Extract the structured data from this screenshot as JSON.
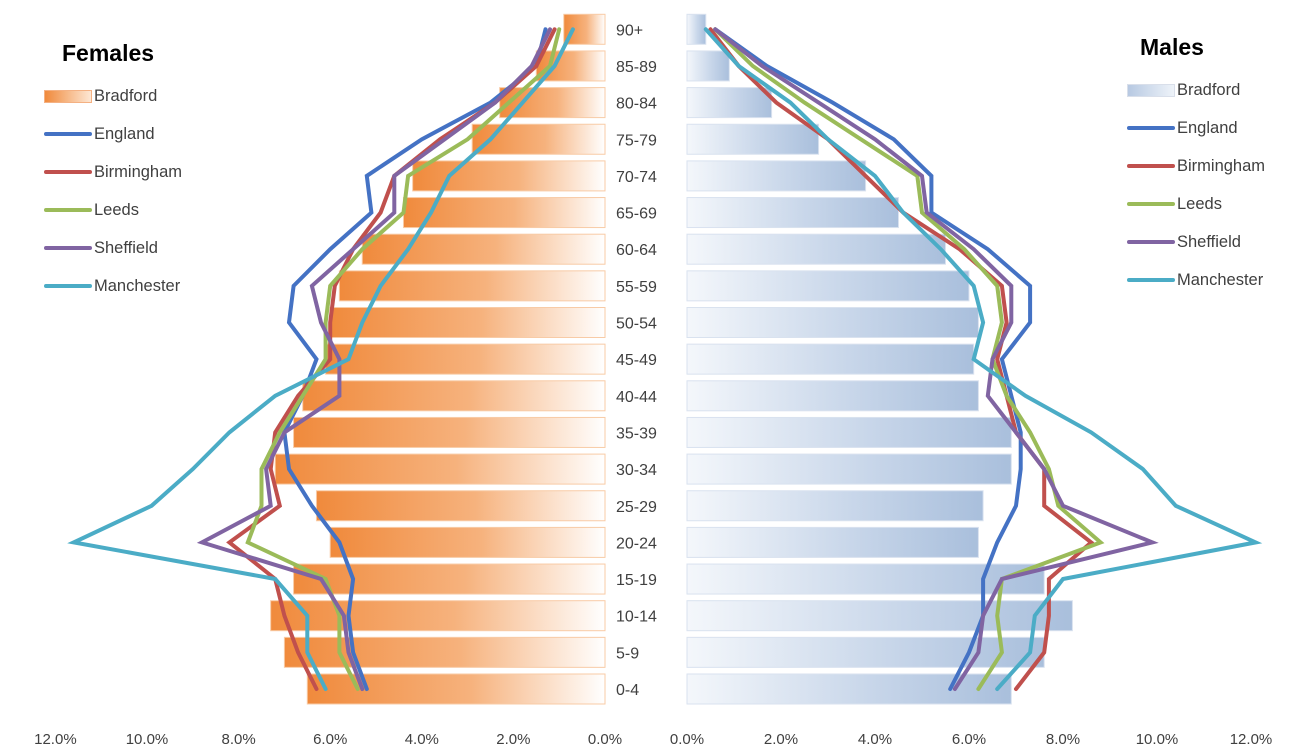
{
  "chart_data": [
    {
      "type": "bar",
      "panel": "female",
      "title": "Females",
      "categories": [
        "0-4",
        "5-9",
        "10-14",
        "15-19",
        "20-24",
        "25-29",
        "30-34",
        "35-39",
        "40-44",
        "45-49",
        "50-54",
        "55-59",
        "60-64",
        "65-69",
        "70-74",
        "75-79",
        "80-84",
        "85-89",
        "90+"
      ],
      "xlim": [
        0,
        12
      ],
      "x_ticks": [
        "0.0%",
        "2.0%",
        "4.0%",
        "6.0%",
        "8.0%",
        "10.0%",
        "12.0%"
      ],
      "x_direction": "reversed",
      "bars": {
        "name": "Bradford",
        "values": [
          6.5,
          7.0,
          7.3,
          6.8,
          6.0,
          6.3,
          7.2,
          6.8,
          6.6,
          6.1,
          6.0,
          5.8,
          5.3,
          4.4,
          4.2,
          2.9,
          2.3,
          1.5,
          0.9
        ]
      },
      "series": [
        {
          "name": "England",
          "color": "#4472c4",
          "values": [
            5.2,
            5.5,
            5.6,
            5.5,
            5.8,
            6.4,
            6.9,
            7.0,
            6.6,
            6.3,
            6.9,
            6.8,
            6.0,
            5.1,
            5.2,
            4.0,
            2.5,
            1.5,
            1.3
          ]
        },
        {
          "name": "Birmingham",
          "color": "#c0504d",
          "values": [
            6.3,
            6.7,
            7.0,
            7.2,
            8.2,
            7.1,
            7.3,
            7.2,
            6.7,
            6.0,
            6.0,
            5.9,
            5.5,
            4.9,
            4.6,
            3.6,
            2.4,
            1.5,
            1.1
          ]
        },
        {
          "name": "Leeds",
          "color": "#9bbb59",
          "values": [
            5.4,
            5.8,
            5.8,
            6.1,
            7.8,
            7.5,
            7.5,
            7.1,
            6.6,
            6.1,
            6.1,
            6.0,
            5.3,
            4.4,
            4.3,
            3.0,
            2.1,
            1.2,
            1.0
          ]
        },
        {
          "name": "Sheffield",
          "color": "#8064a2",
          "values": [
            5.3,
            5.6,
            5.7,
            6.2,
            8.8,
            7.3,
            7.4,
            7.0,
            5.8,
            5.8,
            6.2,
            6.4,
            5.5,
            4.6,
            4.6,
            3.5,
            2.4,
            1.6,
            1.2
          ]
        },
        {
          "name": "Manchester",
          "color": "#4bacc6",
          "values": [
            6.1,
            6.5,
            6.5,
            7.2,
            11.6,
            9.9,
            9.0,
            8.2,
            7.2,
            5.6,
            5.3,
            4.9,
            4.3,
            3.8,
            3.4,
            2.5,
            1.8,
            1.1,
            0.7
          ]
        }
      ]
    },
    {
      "type": "bar",
      "panel": "male",
      "title": "Males",
      "categories": [
        "0-4",
        "5-9",
        "10-14",
        "15-19",
        "20-24",
        "25-29",
        "30-34",
        "35-39",
        "40-44",
        "45-49",
        "50-54",
        "55-59",
        "60-64",
        "65-69",
        "70-74",
        "75-79",
        "80-84",
        "85-89",
        "90+"
      ],
      "xlim": [
        0,
        12
      ],
      "x_ticks": [
        "0.0%",
        "2.0%",
        "4.0%",
        "6.0%",
        "8.0%",
        "10.0%",
        "12.0%"
      ],
      "x_direction": "normal",
      "bars": {
        "name": "Bradford",
        "values": [
          6.9,
          7.6,
          8.2,
          7.6,
          6.2,
          6.3,
          6.9,
          6.9,
          6.2,
          6.1,
          6.2,
          6.0,
          5.5,
          4.5,
          3.8,
          2.8,
          1.8,
          0.9,
          0.4
        ]
      },
      "series": [
        {
          "name": "England",
          "color": "#4472c4",
          "values": [
            5.6,
            6.0,
            6.3,
            6.3,
            6.6,
            7.0,
            7.1,
            7.1,
            6.9,
            6.7,
            7.3,
            7.3,
            6.4,
            5.2,
            5.2,
            4.4,
            3.1,
            1.7,
            0.6
          ]
        },
        {
          "name": "Birmingham",
          "color": "#c0504d",
          "values": [
            7.0,
            7.6,
            7.7,
            7.7,
            8.6,
            7.6,
            7.6,
            7.0,
            6.8,
            6.6,
            6.8,
            6.7,
            5.8,
            4.6,
            3.8,
            3.0,
            1.9,
            1.1,
            0.5
          ]
        },
        {
          "name": "Leeds",
          "color": "#9bbb59",
          "values": [
            6.2,
            6.7,
            6.6,
            6.7,
            8.8,
            7.9,
            7.7,
            7.3,
            6.8,
            6.5,
            6.7,
            6.6,
            5.9,
            5.0,
            4.9,
            3.7,
            2.5,
            1.4,
            0.6
          ]
        },
        {
          "name": "Sheffield",
          "color": "#8064a2",
          "values": [
            5.7,
            6.2,
            6.3,
            6.7,
            9.9,
            8.0,
            7.6,
            7.0,
            6.4,
            6.5,
            6.9,
            6.9,
            6.1,
            5.1,
            5.0,
            4.0,
            2.8,
            1.6,
            0.6
          ]
        },
        {
          "name": "Manchester",
          "color": "#4bacc6",
          "values": [
            6.6,
            7.3,
            7.4,
            8.0,
            12.1,
            10.4,
            9.7,
            8.6,
            7.2,
            6.1,
            6.3,
            6.1,
            5.4,
            4.6,
            4.0,
            3.0,
            2.2,
            1.1,
            0.4
          ]
        }
      ]
    }
  ],
  "legend": {
    "female": [
      "Bradford",
      "England",
      "Birmingham",
      "Leeds",
      "Sheffield",
      "Manchester"
    ],
    "male": [
      "Bradford",
      "England",
      "Birmingham",
      "Leeds",
      "Sheffield",
      "Manchester"
    ]
  }
}
